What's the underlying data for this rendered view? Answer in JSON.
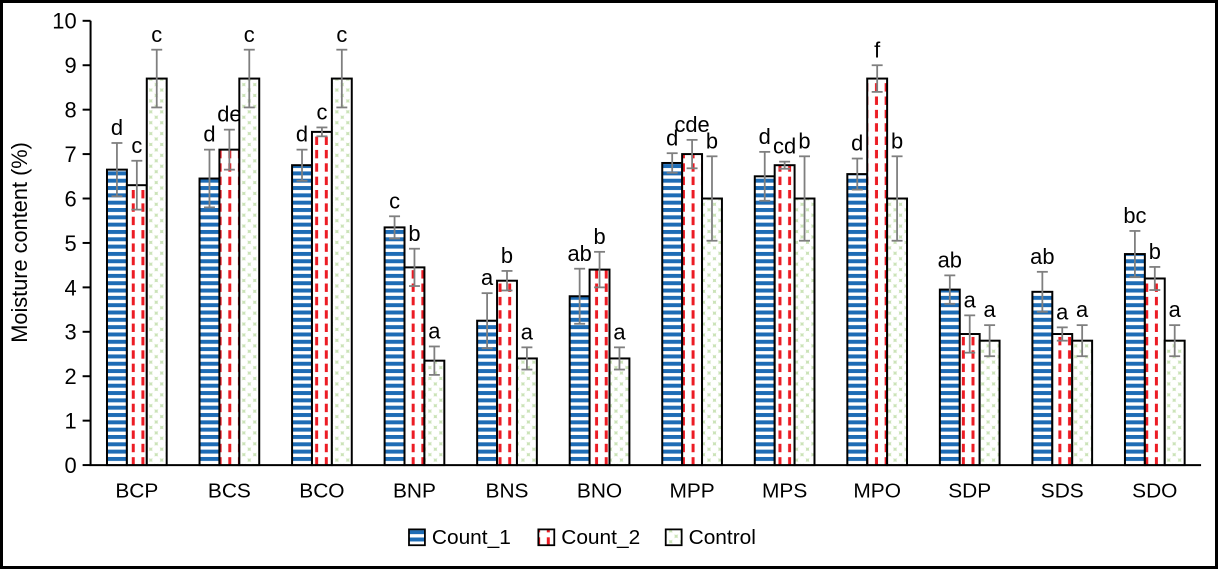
{
  "figure": {
    "background": "#FFFFFF",
    "border_color": "#000000"
  },
  "chart_data": {
    "type": "bar",
    "title": "",
    "xlabel": "",
    "ylabel": "Moisture content (%)",
    "ylim": [
      0,
      10
    ],
    "yticks": [
      0,
      1,
      2,
      3,
      4,
      5,
      6,
      7,
      8,
      9,
      10
    ],
    "grid": false,
    "legend_position": "bottom",
    "error_bar_color": "#7F7F7F",
    "axis_color": "#000000",
    "letter_color": "#000000",
    "categories": [
      "BCP",
      "BCS",
      "BCO",
      "BNP",
      "BNS",
      "BNO",
      "MPP",
      "MPS",
      "MPO",
      "SDP",
      "SDS",
      "SDO"
    ],
    "series": [
      {
        "name": "Count_1",
        "pattern": "blue-horizontal-stripes",
        "color": "#1E6CB5",
        "values": [
          6.65,
          6.45,
          6.75,
          5.35,
          3.25,
          3.8,
          6.8,
          6.5,
          6.55,
          3.95,
          3.9,
          4.75
        ],
        "errors": [
          0.6,
          0.65,
          0.35,
          0.25,
          0.62,
          0.62,
          0.22,
          0.55,
          0.35,
          0.32,
          0.45,
          0.52
        ],
        "letters": [
          "d",
          "d",
          "d",
          "c",
          "a",
          "ab",
          "d",
          "d",
          "d",
          "ab",
          "ab",
          "bc"
        ]
      },
      {
        "name": "Count_2",
        "pattern": "red-vertical-dashes",
        "color": "#EC1C24",
        "values": [
          6.3,
          7.1,
          7.5,
          4.45,
          4.15,
          4.4,
          7.0,
          6.75,
          8.7,
          2.95,
          2.95,
          4.2
        ],
        "errors": [
          0.55,
          0.45,
          0.1,
          0.42,
          0.22,
          0.4,
          0.32,
          0.08,
          0.3,
          0.42,
          0.15,
          0.26
        ],
        "letters": [
          "c",
          "de",
          "c",
          "b",
          "b",
          "b",
          "cde",
          "cd",
          "f",
          "a",
          "a",
          "b"
        ]
      },
      {
        "name": "Control",
        "pattern": "green-circle-lattice",
        "color": "#CBE3B8",
        "circle_color": "#FFFFFF",
        "values": [
          8.7,
          8.7,
          8.7,
          2.35,
          2.4,
          2.4,
          6.0,
          6.0,
          6.0,
          2.8,
          2.8,
          2.8
        ],
        "errors": [
          0.65,
          0.65,
          0.65,
          0.32,
          0.25,
          0.25,
          0.95,
          0.95,
          0.95,
          0.35,
          0.35,
          0.35
        ],
        "letters": [
          "c",
          "c",
          "c",
          "a",
          "a",
          "a",
          "b",
          "b",
          "b",
          "a",
          "a",
          "a"
        ]
      }
    ],
    "legend": [
      "Count_1",
      "Count_2",
      "Control"
    ]
  }
}
